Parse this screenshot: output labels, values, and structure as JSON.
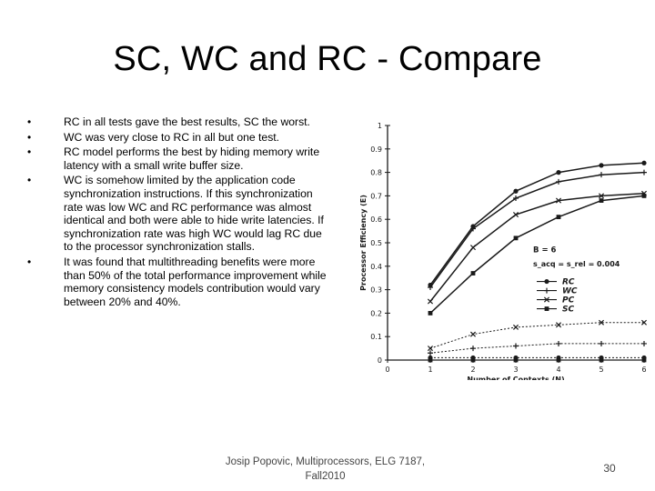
{
  "slide": {
    "title": "SC, WC and RC - Compare",
    "bullets": [
      "RC in all tests gave the best results, SC the worst.",
      "WC was very close to RC in all but one test.",
      "RC model performs the best by hiding memory write latency with a small write buffer size.",
      "WC is somehow limited by the application code synchronization instructions. If this synchronization rate was low WC and RC performance was almost identical and both were able to hide write latencies. If synchronization rate was high WC would lag RC due to the processor synchronization stalls.",
      "It was found that multithreading benefits were more than 50% of the total performance improvement while memory consistency models contribution would vary between 20% and 40%."
    ],
    "footer": "Josip Popovic, Multiprocessors, ELG 7187, Fall2010",
    "page_number": "30"
  },
  "chart_data": {
    "type": "line",
    "xlabel": "Number of Contexts (N)",
    "ylabel": "Processor Efficiency (E)",
    "x": [
      1,
      2,
      3,
      4,
      5,
      6
    ],
    "xlim": [
      0,
      6
    ],
    "ylim": [
      0,
      1
    ],
    "x_ticks": [
      "0",
      "1",
      "2",
      "3",
      "4",
      "5",
      "6"
    ],
    "y_ticks": [
      "0",
      "0.1",
      "0.2",
      "0.3",
      "0.4",
      "0.5",
      "0.6",
      "0.7",
      "0.8",
      "0.9",
      "1"
    ],
    "annotation_line1": "B = 6",
    "annotation_line2": "s_acq = s_rel = 0.004",
    "legend_position": "right-middle",
    "series": [
      {
        "name": "RC",
        "group": "upper",
        "marker": "dot",
        "values": [
          0.32,
          0.57,
          0.72,
          0.8,
          0.83,
          0.84
        ]
      },
      {
        "name": "WC",
        "group": "upper",
        "marker": "plus",
        "values": [
          0.31,
          0.56,
          0.69,
          0.76,
          0.79,
          0.8
        ]
      },
      {
        "name": "PC",
        "group": "upper",
        "marker": "cross",
        "values": [
          0.25,
          0.48,
          0.62,
          0.68,
          0.7,
          0.71
        ]
      },
      {
        "name": "SC",
        "group": "upper",
        "marker": "square",
        "values": [
          0.2,
          0.37,
          0.52,
          0.61,
          0.68,
          0.7
        ]
      },
      {
        "name": "PC",
        "group": "lower",
        "marker": "cross",
        "values": [
          0.05,
          0.11,
          0.14,
          0.15,
          0.16,
          0.16
        ]
      },
      {
        "name": "WC",
        "group": "lower",
        "marker": "plus",
        "values": [
          0.03,
          0.05,
          0.06,
          0.07,
          0.07,
          0.07
        ]
      },
      {
        "name": "RC",
        "group": "lower",
        "marker": "dot",
        "values": [
          0.01,
          0.01,
          0.01,
          0.01,
          0.01,
          0.01
        ]
      },
      {
        "name": "SC",
        "group": "lower",
        "marker": "square",
        "values": [
          0.0,
          0.0,
          0.0,
          0.0,
          0.0,
          0.0
        ]
      }
    ],
    "colors": {
      "ink": "#1a1a1a"
    }
  }
}
